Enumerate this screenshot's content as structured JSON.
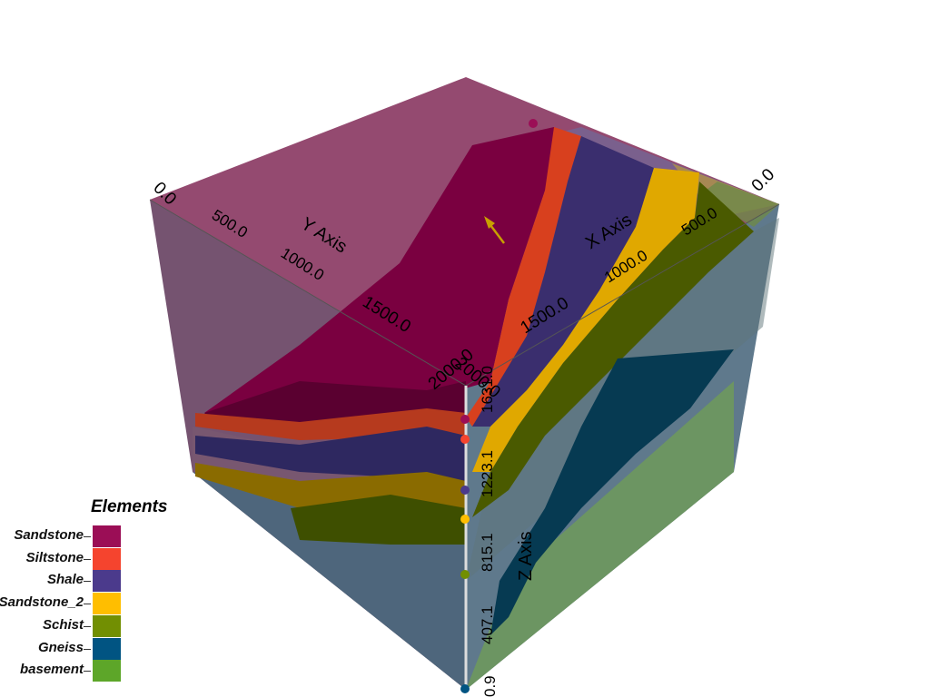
{
  "legend": {
    "title": "Elements",
    "items": [
      {
        "label": "Sandstone",
        "color": "#9B0E56"
      },
      {
        "label": "Siltstone",
        "color": "#F5442E"
      },
      {
        "label": "Shale",
        "color": "#4B3A8C"
      },
      {
        "label": "Sandstone_2",
        "color": "#FFBE00"
      },
      {
        "label": "Schist",
        "color": "#728F02"
      },
      {
        "label": "Gneiss",
        "color": "#015482"
      },
      {
        "label": "basement",
        "color": "#5DA629"
      }
    ]
  },
  "axes": {
    "x": {
      "title": "X Axis",
      "ticks": [
        "0.0",
        "500.0",
        "1000.0",
        "1500.0",
        "2000.0"
      ]
    },
    "y": {
      "title": "Y Axis",
      "ticks": [
        "0.0",
        "500.0",
        "1000.0",
        "1500.0",
        "2000.0"
      ]
    },
    "z": {
      "title": "Z Axis",
      "ticks": [
        "0.9",
        "407.1",
        "815.1",
        "1223.1",
        "1631.0"
      ]
    }
  }
}
